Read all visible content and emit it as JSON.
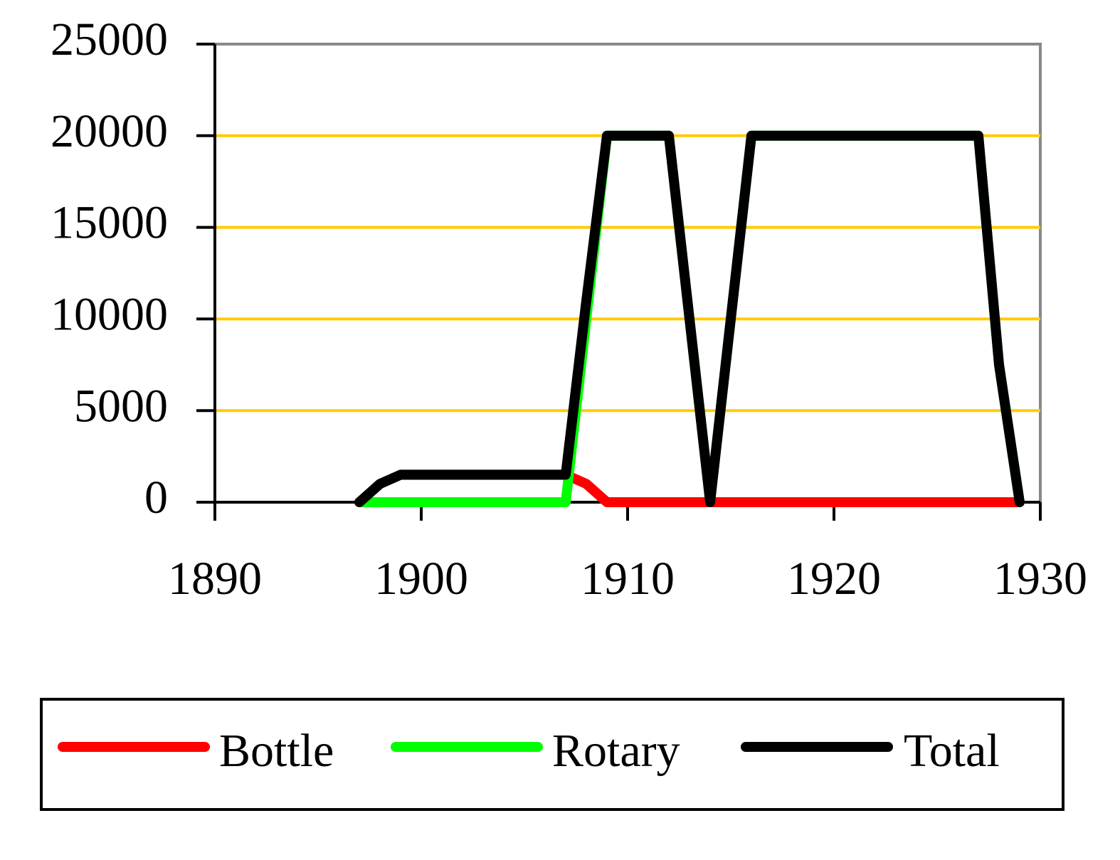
{
  "chart_data": {
    "type": "line",
    "x": [
      1897,
      1898,
      1899,
      1900,
      1901,
      1902,
      1903,
      1904,
      1905,
      1906,
      1907,
      1908,
      1909,
      1910,
      1911,
      1912,
      1913,
      1914,
      1915,
      1916,
      1917,
      1918,
      1919,
      1920,
      1921,
      1922,
      1923,
      1924,
      1925,
      1926,
      1927,
      1928,
      1929
    ],
    "series": [
      {
        "name": "Bottle",
        "color": "#ff0000",
        "values": [
          0,
          1000,
          1500,
          1500,
          1500,
          1500,
          1500,
          1500,
          1500,
          1500,
          1500,
          1000,
          0,
          0,
          0,
          0,
          0,
          0,
          0,
          0,
          0,
          0,
          0,
          0,
          0,
          0,
          0,
          0,
          0,
          0,
          0,
          0,
          0
        ]
      },
      {
        "name": "Rotary",
        "color": "#00ff00",
        "values": [
          0,
          0,
          0,
          0,
          0,
          0,
          0,
          0,
          0,
          0,
          0,
          10000,
          20000,
          20000,
          20000,
          20000,
          10000,
          0,
          10000,
          20000,
          20000,
          20000,
          20000,
          20000,
          20000,
          20000,
          20000,
          20000,
          20000,
          20000,
          20000,
          7500,
          0
        ]
      },
      {
        "name": "Total",
        "color": "#000000",
        "values": [
          0,
          1000,
          1500,
          1500,
          1500,
          1500,
          1500,
          1500,
          1500,
          1500,
          1500,
          11000,
          20000,
          20000,
          20000,
          20000,
          10000,
          0,
          10000,
          20000,
          20000,
          20000,
          20000,
          20000,
          20000,
          20000,
          20000,
          20000,
          20000,
          20000,
          20000,
          7500,
          0
        ]
      }
    ],
    "xlim": [
      1890,
      1930
    ],
    "xticks": [
      1890,
      1900,
      1910,
      1920,
      1930
    ],
    "ylim": [
      0,
      25000
    ],
    "yticks": [
      0,
      5000,
      10000,
      15000,
      20000,
      25000
    ],
    "grid": true,
    "grid_color": "#ffcc00",
    "legend": "bottom"
  }
}
